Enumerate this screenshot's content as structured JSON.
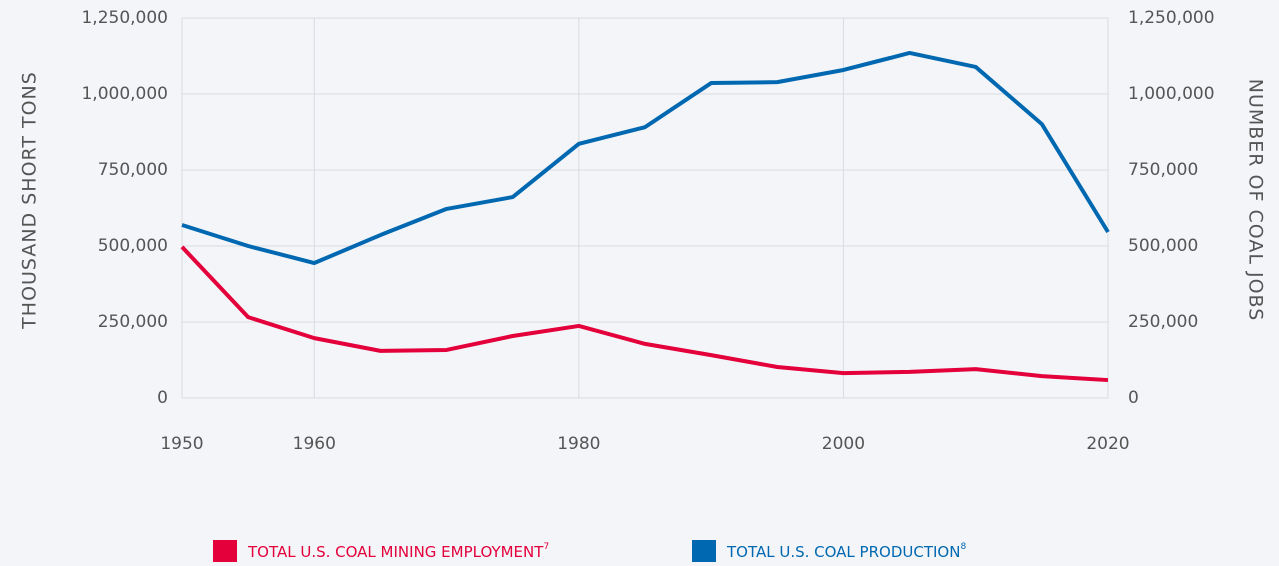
{
  "chart_data": {
    "type": "line",
    "y_label": "THOUSAND SHORT TONS",
    "y2_label": "NUMBER OF COAL JOBS",
    "x": [
      1950,
      1955,
      1960,
      1965,
      1970,
      1975,
      1980,
      1985,
      1990,
      1995,
      2000,
      2005,
      2010,
      2015,
      2020
    ],
    "xlim": [
      1950,
      2020
    ],
    "xticks": [
      1950,
      1960,
      1980,
      2000,
      2020
    ],
    "ylim": [
      0,
      1250000
    ],
    "yticks": [
      {
        "value": 0,
        "label": "0"
      },
      {
        "value": 250000,
        "label": "250,000"
      },
      {
        "value": 500000,
        "label": "500,000"
      },
      {
        "value": 750000,
        "label": "750,000"
      },
      {
        "value": 1000000,
        "label": "1,000,000"
      },
      {
        "value": 1250000,
        "label": "1,250,000"
      }
    ],
    "y2lim": [
      0,
      1250000
    ],
    "y2ticks": [
      {
        "value": 0,
        "label": "0"
      },
      {
        "value": 250000,
        "label": "250,000"
      },
      {
        "value": 500000,
        "label": "500,000"
      },
      {
        "value": 750000,
        "label": "750,000"
      },
      {
        "value": 1000000,
        "label": "1,000,000"
      },
      {
        "value": 1250000,
        "label": "1,250,000"
      }
    ],
    "grid": true,
    "legend": "bottom",
    "series": [
      {
        "name": "TOTAL U.S. COAL MINING EMPLOYMENT",
        "footnote": "7",
        "color": "#e4003b",
        "axis": "y2",
        "values": [
          497000,
          266000,
          197000,
          155000,
          158000,
          204000,
          237000,
          178000,
          141000,
          102000,
          82000,
          86000,
          95000,
          72000,
          59000
        ]
      },
      {
        "name": "TOTAL U.S. COAL PRODUCTION",
        "footnote": "8",
        "color": "#0068b1",
        "axis": "y",
        "values": [
          569000,
          500000,
          444000,
          536000,
          622000,
          661000,
          836000,
          891000,
          1036000,
          1039000,
          1079000,
          1135000,
          1089000,
          901000,
          546000
        ]
      }
    ]
  }
}
